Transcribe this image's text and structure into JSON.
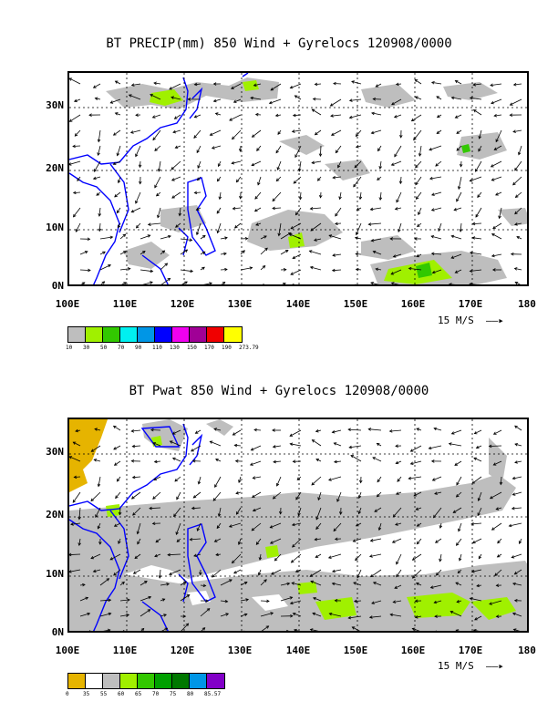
{
  "panels": [
    {
      "title": "BT PRECIP(mm) 850 Wind + Gyrelocs 120908/0000",
      "lat_labels": [
        "30N",
        "20N",
        "10N",
        "0N"
      ],
      "lon_labels": [
        "100E",
        "110E",
        "120E",
        "130E",
        "140E",
        "150E",
        "160E",
        "170E",
        "180"
      ],
      "ref_vector": "15 M/S",
      "legend_colors": [
        "#bebebe",
        "#a0f000",
        "#32c800",
        "#00f0f0",
        "#0096e6",
        "#0000ff",
        "#f000f0",
        "#a00096",
        "#f00000",
        "#ffff00"
      ],
      "legend_labels": [
        "10",
        "30",
        "50",
        "70",
        "90",
        "110",
        "130",
        "150",
        "170",
        "190",
        "273.79"
      ]
    },
    {
      "title": "BT Pwat 850 Wind + Gyrelocs 120908/0000",
      "lat_labels": [
        "30N",
        "20N",
        "10N",
        "0N"
      ],
      "lon_labels": [
        "100E",
        "110E",
        "120E",
        "130E",
        "140E",
        "150E",
        "160E",
        "170E",
        "180"
      ],
      "ref_vector": "15 M/S",
      "legend_colors": [
        "#e6b400",
        "#ffffff",
        "#bebebe",
        "#a0f000",
        "#32c800",
        "#00a000",
        "#007800",
        "#0096e6",
        "#8200c8"
      ],
      "legend_labels": [
        "0",
        "35",
        "55",
        "60",
        "65",
        "70",
        "75",
        "80",
        "85.57"
      ]
    }
  ]
}
